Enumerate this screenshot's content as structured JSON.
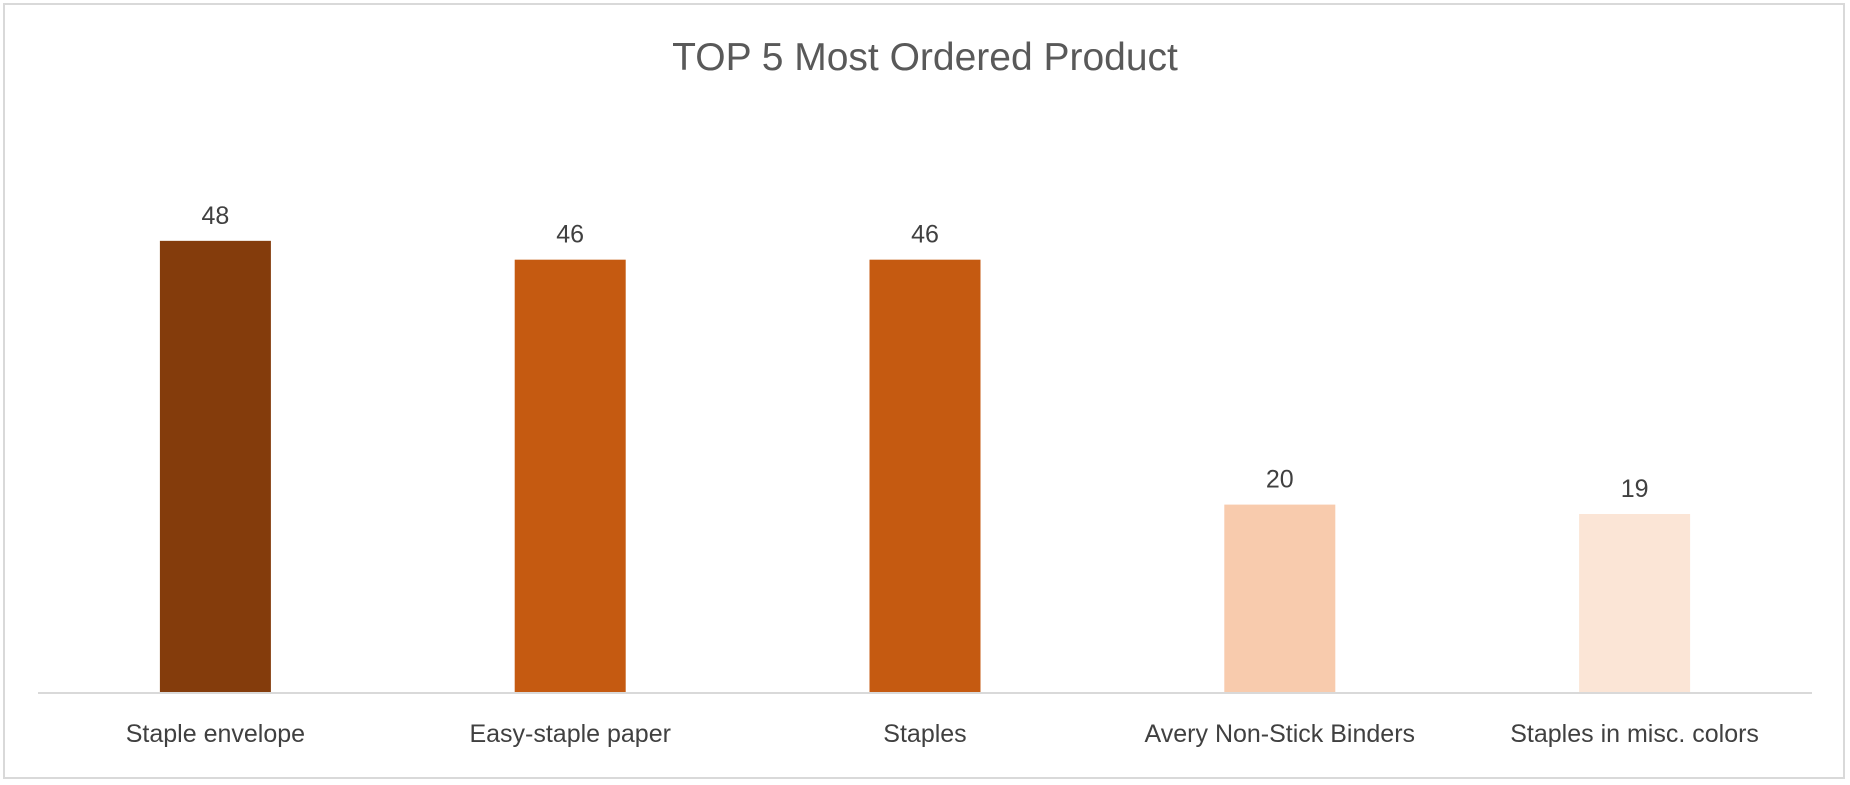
{
  "chart_data": {
    "type": "bar",
    "title": "TOP 5 Most Ordered Product",
    "categories": [
      "Staple envelope",
      "Easy-staple paper",
      "Staples",
      "Avery Non-Stick Binders",
      "Staples in misc. colors"
    ],
    "values": [
      48,
      46,
      46,
      20,
      19
    ],
    "bar_colors": [
      "#843C0C",
      "#C55A11",
      "#C55A11",
      "#F8CBAD",
      "#FBE5D6"
    ],
    "xlabel": "",
    "ylabel": "",
    "ylim": [
      0,
      60
    ],
    "grid": false,
    "legend": "none",
    "data_labels": true
  }
}
